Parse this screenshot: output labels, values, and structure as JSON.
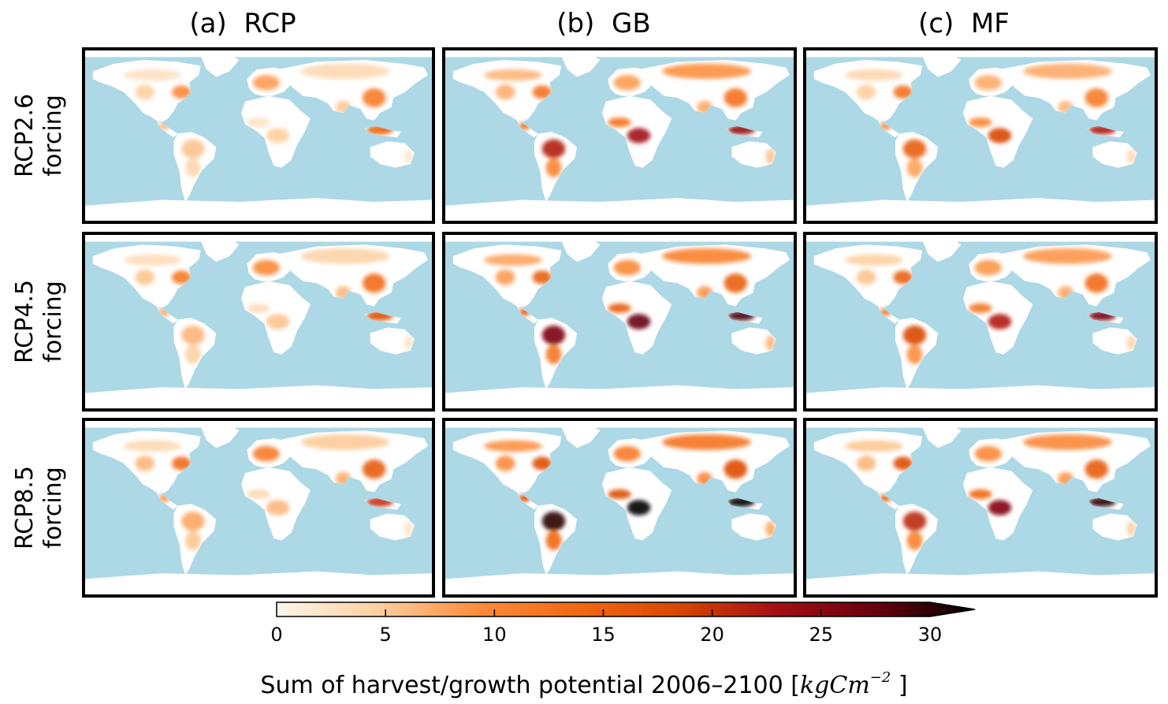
{
  "columns": [
    {
      "title": "(a)  RCP"
    },
    {
      "title": "(b)  GB"
    },
    {
      "title": "(c)  MF"
    }
  ],
  "rows": [
    {
      "line1": "RCP2.6",
      "line2": "forcing"
    },
    {
      "line1": "RCP4.5",
      "line2": "forcing"
    },
    {
      "line1": "RCP8.5",
      "line2": "forcing"
    }
  ],
  "colors": {
    "ocean": "#add8e6",
    "land_low": "#ffffff",
    "colormap": [
      "#fff5eb",
      "#fdd0a2",
      "#fd8d3c",
      "#f16913",
      "#d94801",
      "#a50f15",
      "#67000d",
      "#000000"
    ]
  },
  "colorbar": {
    "ticks": [
      "0",
      "5",
      "10",
      "15",
      "20",
      "25",
      "30"
    ],
    "range": [
      0,
      30
    ],
    "extend": "max",
    "label_text": "Sum of harvest/growth potential 2006–2100 [",
    "unit_base": "kgCm",
    "unit_exp": "−2",
    "label_end": " ]"
  }
}
